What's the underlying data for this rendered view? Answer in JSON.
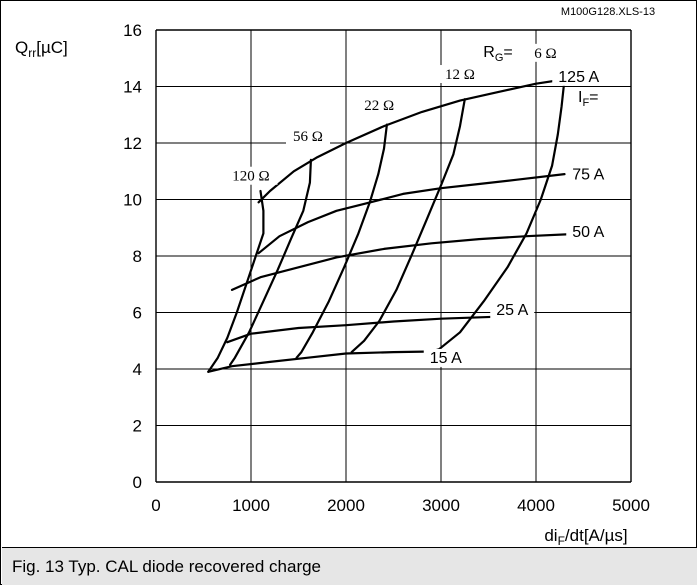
{
  "chart_data": {
    "type": "line",
    "code_label": "M100G128.XLS-13",
    "caption": "Fig. 13 Typ. CAL diode recovered charge",
    "ylabel": {
      "main": "Q",
      "sub": "rr",
      "unit": "[µC]"
    },
    "xlabel": {
      "main": "di",
      "sub": "F",
      "unit": "/dt[A/µs]"
    },
    "xlim": [
      0,
      5000
    ],
    "ylim": [
      0,
      16
    ],
    "x_ticks": [
      "0",
      "1000",
      "2000",
      "3000",
      "4000",
      "5000"
    ],
    "y_ticks": [
      "0",
      "2",
      "4",
      "6",
      "8",
      "10",
      "12",
      "14",
      "16"
    ],
    "grid": true,
    "rg_group_label": {
      "main": "R",
      "sub": "G",
      "suffix": "="
    },
    "if_group_label": {
      "main": "I",
      "sub": "F",
      "suffix": "="
    },
    "if_series": [
      {
        "name": "125 A",
        "points": [
          [
            1080,
            9.9
          ],
          [
            1200,
            10.3
          ],
          [
            1450,
            11.0
          ],
          [
            1700,
            11.5
          ],
          [
            2000,
            12.0
          ],
          [
            2400,
            12.6
          ],
          [
            2800,
            13.1
          ],
          [
            3200,
            13.5
          ],
          [
            3600,
            13.8
          ],
          [
            4000,
            14.1
          ],
          [
            4300,
            14.25
          ]
        ]
      },
      {
        "name": "75 A",
        "points": [
          [
            1080,
            8.1
          ],
          [
            1300,
            8.7
          ],
          [
            1600,
            9.2
          ],
          [
            1900,
            9.6
          ],
          [
            2200,
            9.85
          ],
          [
            2600,
            10.2
          ],
          [
            3000,
            10.4
          ],
          [
            3400,
            10.55
          ],
          [
            3800,
            10.7
          ],
          [
            4300,
            10.9
          ]
        ]
      },
      {
        "name": "50 A",
        "points": [
          [
            800,
            6.8
          ],
          [
            1100,
            7.25
          ],
          [
            1500,
            7.6
          ],
          [
            1900,
            7.95
          ],
          [
            2400,
            8.25
          ],
          [
            2900,
            8.45
          ],
          [
            3400,
            8.6
          ],
          [
            3900,
            8.7
          ],
          [
            4400,
            8.78
          ]
        ]
      },
      {
        "name": "25 A",
        "points": [
          [
            750,
            4.95
          ],
          [
            1000,
            5.25
          ],
          [
            1500,
            5.45
          ],
          [
            2000,
            5.55
          ],
          [
            2500,
            5.68
          ],
          [
            3000,
            5.78
          ],
          [
            3600,
            5.85
          ]
        ]
      },
      {
        "name": "15 A",
        "points": [
          [
            550,
            3.9
          ],
          [
            800,
            4.1
          ],
          [
            1200,
            4.25
          ],
          [
            1600,
            4.4
          ],
          [
            2000,
            4.55
          ],
          [
            2500,
            4.6
          ],
          [
            2900,
            4.62
          ]
        ]
      }
    ],
    "rg_series": [
      {
        "name": "120 Ω",
        "points": [
          [
            1100,
            10.3
          ],
          [
            1130,
            9.6
          ],
          [
            1130,
            8.8
          ],
          [
            1050,
            8.0
          ],
          [
            950,
            7.0
          ],
          [
            850,
            6.0
          ],
          [
            750,
            5.1
          ],
          [
            650,
            4.4
          ],
          [
            550,
            3.9
          ]
        ]
      },
      {
        "name": "56 Ω",
        "points": [
          [
            1630,
            11.4
          ],
          [
            1620,
            10.6
          ],
          [
            1550,
            9.6
          ],
          [
            1420,
            8.6
          ],
          [
            1280,
            7.5
          ],
          [
            1130,
            6.4
          ],
          [
            980,
            5.3
          ],
          [
            830,
            4.4
          ],
          [
            780,
            4.15
          ]
        ]
      },
      {
        "name": "22 Ω",
        "points": [
          [
            2430,
            12.65
          ],
          [
            2400,
            11.8
          ],
          [
            2340,
            10.9
          ],
          [
            2250,
            9.9
          ],
          [
            2130,
            8.8
          ],
          [
            1980,
            7.6
          ],
          [
            1820,
            6.4
          ],
          [
            1650,
            5.3
          ],
          [
            1530,
            4.6
          ],
          [
            1480,
            4.4
          ]
        ]
      },
      {
        "name": "12 Ω",
        "points": [
          [
            3250,
            13.55
          ],
          [
            3200,
            12.6
          ],
          [
            3130,
            11.6
          ],
          [
            3000,
            10.5
          ],
          [
            2850,
            9.3
          ],
          [
            2700,
            8.1
          ],
          [
            2530,
            6.8
          ],
          [
            2350,
            5.7
          ],
          [
            2190,
            5.0
          ],
          [
            2060,
            4.6
          ]
        ]
      },
      {
        "name": "6 Ω",
        "points": [
          [
            4300,
            14.25
          ],
          [
            4270,
            13.3
          ],
          [
            4230,
            12.3
          ],
          [
            4170,
            11.2
          ],
          [
            4050,
            10.0
          ],
          [
            3900,
            8.8
          ],
          [
            3700,
            7.6
          ],
          [
            3450,
            6.4
          ],
          [
            3200,
            5.3
          ],
          [
            2980,
            4.7
          ],
          [
            2900,
            4.62
          ]
        ]
      }
    ],
    "label_positions": {
      "120 Ω": [
        1000,
        10.7
      ],
      "56 Ω": [
        1600,
        12.1
      ],
      "22 Ω": [
        2350,
        13.2
      ],
      "12 Ω": [
        3200,
        14.3
      ],
      "6 Ω": [
        4100,
        15.05
      ],
      "125 A": [
        4450,
        14.2
      ],
      "75 A": [
        4550,
        10.75
      ],
      "50 A": [
        4550,
        8.7
      ],
      "25 A": [
        3750,
        5.95
      ],
      "15 A": [
        3050,
        4.25
      ]
    },
    "rg_group_pos": [
      3600,
      15.05
    ],
    "if_group_pos": [
      4550,
      13.45
    ]
  }
}
